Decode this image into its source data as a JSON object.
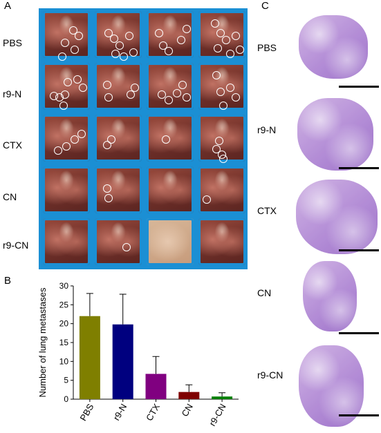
{
  "figure": {
    "panel_a": "A",
    "panel_b": "B",
    "panel_c": "C",
    "rows": [
      "PBS",
      "r9-N",
      "CTX",
      "CN",
      "r9-CN"
    ],
    "histology_rows": [
      "PBS",
      "r9-N",
      "CTX",
      "CN",
      "r9-CN"
    ]
  },
  "chart_data": {
    "type": "bar",
    "categories": [
      "PBS",
      "r9-N",
      "CTX",
      "CN",
      "r9-CN"
    ],
    "values": [
      22,
      19.8,
      6.7,
      1.9,
      0.7
    ],
    "errors": [
      6,
      8,
      4.6,
      1.9,
      1.0
    ],
    "colors": [
      "#7f7f00",
      "#00007f",
      "#800080",
      "#7f0000",
      "#007f00"
    ],
    "ylabel": "Number of lung metastases",
    "xlabel": "",
    "ylim": [
      0,
      30
    ],
    "yticks": [
      0,
      5,
      10,
      15,
      20,
      25,
      30
    ]
  }
}
